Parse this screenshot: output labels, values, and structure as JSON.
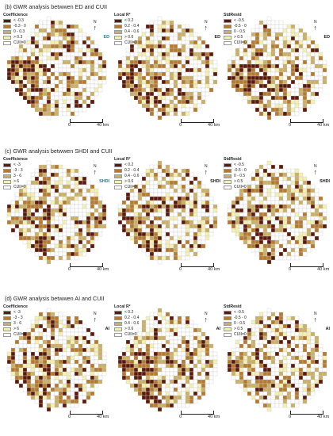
{
  "sections": [
    {
      "title": "(b) GWR analysis betwwen ED and CUII",
      "panels": [
        {
          "legend_title": "Coefficience",
          "items": [
            "< -0.3",
            "-0.3 - 0",
            "0 - 0.3",
            "> 0.3",
            "CUII=0"
          ],
          "colors": [
            "#5c1a0b",
            "#b57a2e",
            "#c9b066",
            "#f4f0b3",
            "#ffffff"
          ],
          "tag": "ED",
          "tag_color": "#1f7a8c"
        },
        {
          "legend_title": "Local R²",
          "items": [
            "< 0.2",
            "0.2 - 0.4",
            "0.4 - 0.6",
            "> 0.6",
            "CUII=0"
          ],
          "colors": [
            "#5c1a0b",
            "#b57a2e",
            "#c9b066",
            "#f4f0b3",
            "#ffffff"
          ],
          "tag": "ED",
          "tag_color": "#222222"
        },
        {
          "legend_title": "StdResid",
          "items": [
            "< -0.5",
            "-0.5 - 0",
            "0 - 0.5",
            "> 0.5",
            "CUII=0"
          ],
          "colors": [
            "#5c1a0b",
            "#b57a2e",
            "#c9b066",
            "#f4f0b3",
            "#ffffff"
          ],
          "tag": "ED",
          "tag_color": "#222222"
        }
      ]
    },
    {
      "title": "(c) GWR analysis betwwen SHDI and CUII",
      "panels": [
        {
          "legend_title": "Coefficience",
          "items": [
            "< -3",
            "-3 - 3",
            "3 - 6",
            "> 6",
            "CUII=0"
          ],
          "colors": [
            "#5c1a0b",
            "#b57a2e",
            "#c9b066",
            "#f4f0b3",
            "#ffffff"
          ],
          "tag": "SHDI",
          "tag_color": "#1f7a8c"
        },
        {
          "legend_title": "Local R²",
          "items": [
            "< 0.2",
            "0.2 - 0.4",
            "0.4 - 0.6",
            "> 0.6",
            "CUII=0"
          ],
          "colors": [
            "#5c1a0b",
            "#b57a2e",
            "#c9b066",
            "#f4f0b3",
            "#ffffff"
          ],
          "tag": "SHDI",
          "tag_color": "#222222"
        },
        {
          "legend_title": "StdResid",
          "items": [
            "< -0.5",
            "-0.5 - 0",
            "0 - 0.5",
            "> 0.5",
            "CUII=0"
          ],
          "colors": [
            "#5c1a0b",
            "#b57a2e",
            "#c9b066",
            "#f4f0b3",
            "#ffffff"
          ],
          "tag": "SHDI",
          "tag_color": "#222222"
        }
      ]
    },
    {
      "title": "(d) GWR analysis betwwen AI and CUII",
      "panels": [
        {
          "legend_title": "Coefficience",
          "items": [
            "< -3",
            "-3 - 3",
            "3 - 6",
            "> 6",
            "CUII=0"
          ],
          "colors": [
            "#5c1a0b",
            "#b57a2e",
            "#c9b066",
            "#f4f0b3",
            "#ffffff"
          ],
          "tag": "AI",
          "tag_color": "#222222"
        },
        {
          "legend_title": "Local R²",
          "items": [
            "< 0.2",
            "0.2 - 0.4",
            "0.4 - 0.6",
            "> 0.6",
            "CUII=0"
          ],
          "colors": [
            "#5c1a0b",
            "#b57a2e",
            "#c9b066",
            "#f4f0b3",
            "#ffffff"
          ],
          "tag": "AI",
          "tag_color": "#222222"
        },
        {
          "legend_title": "StdResid",
          "items": [
            "< -0.5",
            "-0.5 - 0",
            "0 - 0.5",
            "> 0.5",
            "CUII=0"
          ],
          "colors": [
            "#5c1a0b",
            "#b57a2e",
            "#c9b066",
            "#f4f0b3",
            "#ffffff"
          ],
          "tag": "AI",
          "tag_color": "#222222"
        }
      ]
    }
  ],
  "scale": {
    "zero": "0",
    "distance": "40 km"
  },
  "north": {
    "label": "N"
  }
}
